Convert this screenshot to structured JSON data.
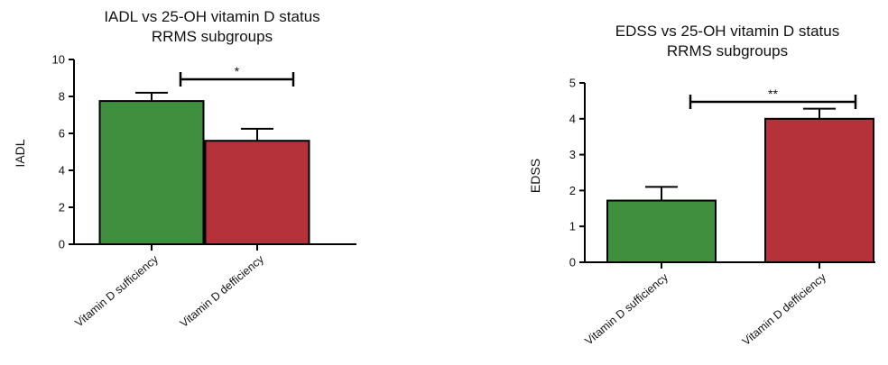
{
  "chart_data": [
    {
      "type": "bar",
      "title_line1": "IADL vs 25-OH vitamin D status",
      "title_line2": "RRMS subgroups",
      "ylabel": "IADL",
      "xlabel": "",
      "categories": [
        "Vitamin D sufficiency",
        "Vitamin D defficiency"
      ],
      "values": [
        7.75,
        5.6
      ],
      "errors": [
        0.45,
        0.65
      ],
      "colors": [
        "#3f8f3f",
        "#b5323a"
      ],
      "ylim": [
        0,
        10
      ],
      "yticks": [
        0,
        2,
        4,
        6,
        8,
        10
      ],
      "significance": "*",
      "grid": false
    },
    {
      "type": "bar",
      "title_line1": "EDSS vs 25-OH vitamin D status",
      "title_line2": "RRMS subgroups",
      "ylabel": "EDSS",
      "xlabel": "",
      "categories": [
        "Vitamin D sufficiency",
        "Vitamin D defficiency"
      ],
      "values": [
        1.72,
        4.0
      ],
      "errors": [
        0.38,
        0.28
      ],
      "colors": [
        "#3f8f3f",
        "#b5323a"
      ],
      "ylim": [
        0,
        5
      ],
      "yticks": [
        0,
        1,
        2,
        3,
        4,
        5
      ],
      "significance": "**",
      "grid": false
    }
  ]
}
